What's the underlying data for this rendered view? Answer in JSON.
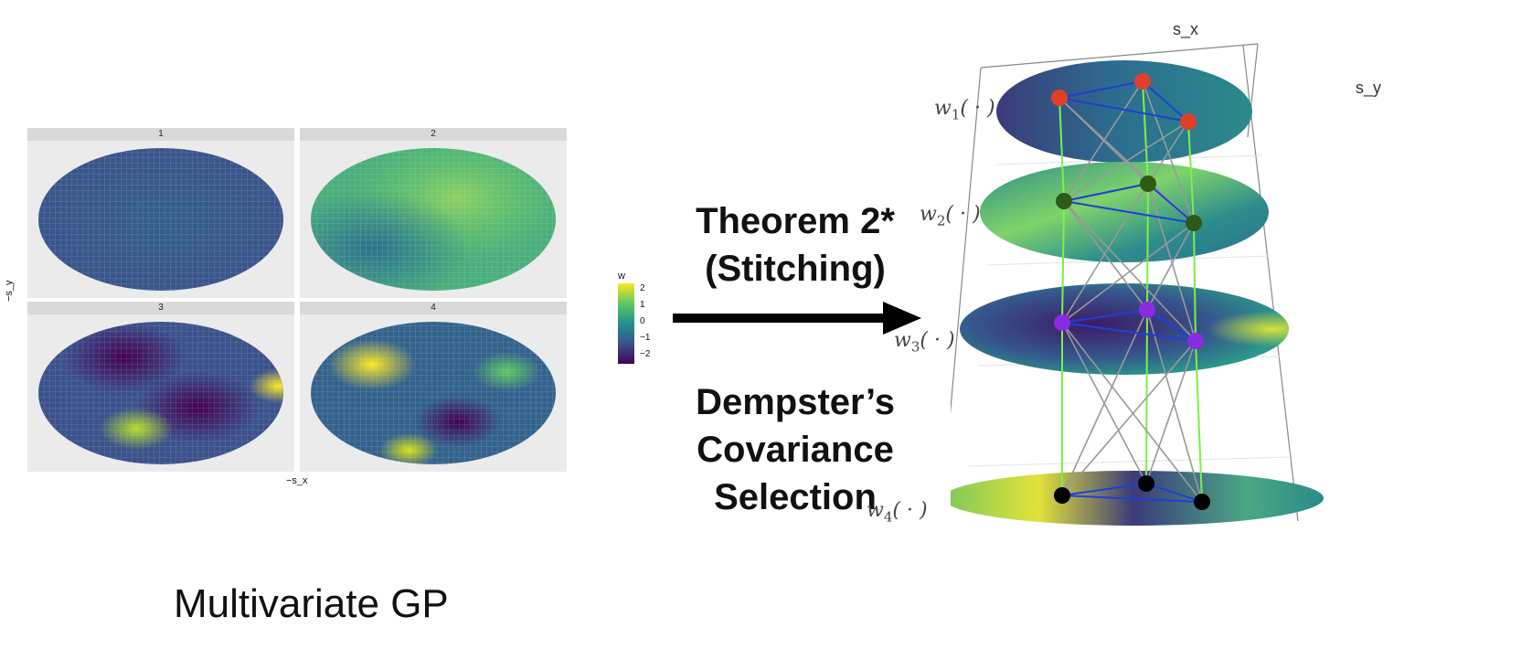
{
  "left_panel": {
    "facets": [
      {
        "label": "1"
      },
      {
        "label": "2"
      },
      {
        "label": "3"
      },
      {
        "label": "4"
      }
    ],
    "x_axis_label": "−s_x",
    "y_axis_label": "−s_y",
    "legend": {
      "title": "w",
      "ticks": [
        "2",
        "1",
        "0",
        "−1",
        "−2"
      ],
      "palette": [
        "#fde725",
        "#5ec962",
        "#21918c",
        "#3b528b",
        "#440154"
      ]
    },
    "caption": "Multivariate GP"
  },
  "middle": {
    "theorem_line1": "Theorem 2*",
    "theorem_line2": "(Stitching)",
    "dempster_line1": "Dempster’s",
    "dempster_line2": "Covariance",
    "dempster_line3": "Selection"
  },
  "right_panel": {
    "axis_x": "s_x",
    "axis_y": "s_y",
    "layers": [
      {
        "label_base": "w",
        "label_sub": "1",
        "label_arg": "( · )",
        "node_color": "#e0402a"
      },
      {
        "label_base": "w",
        "label_sub": "2",
        "label_arg": "( · )",
        "node_color": "#2f5a16"
      },
      {
        "label_base": "w",
        "label_sub": "3",
        "label_arg": "( · )",
        "node_color": "#8a2be2"
      },
      {
        "label_base": "w",
        "label_sub": "4",
        "label_arg": "( · )",
        "node_color": "#000000"
      }
    ],
    "edge_colors": {
      "within_layer": "#1f3fd6",
      "same_location": "#7cf04a",
      "cross_location": "#999999"
    }
  }
}
